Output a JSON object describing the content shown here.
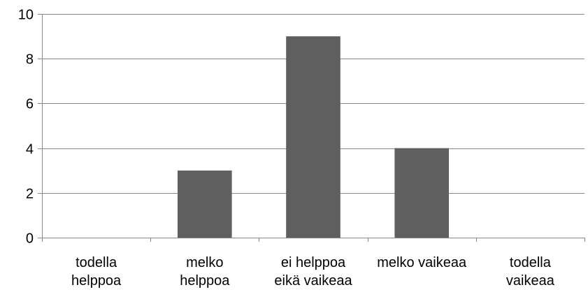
{
  "chart_data": {
    "type": "bar",
    "title": "",
    "xlabel": "",
    "ylabel": "",
    "categories": [
      [
        "todella",
        "helppoa"
      ],
      [
        "melko",
        "helppoa"
      ],
      [
        "ei helppoa",
        "eikä vaikeaa"
      ],
      [
        "melko vaikeaa"
      ],
      [
        "todella",
        "vaikeaa"
      ]
    ],
    "values": [
      0,
      3,
      9,
      4,
      0
    ],
    "ylim": [
      0,
      10
    ],
    "yticks": [
      0,
      2,
      4,
      6,
      8,
      10
    ],
    "grid": true,
    "legend": "none",
    "bar_color": "#5f5f5f",
    "grid_color": "#868686"
  }
}
